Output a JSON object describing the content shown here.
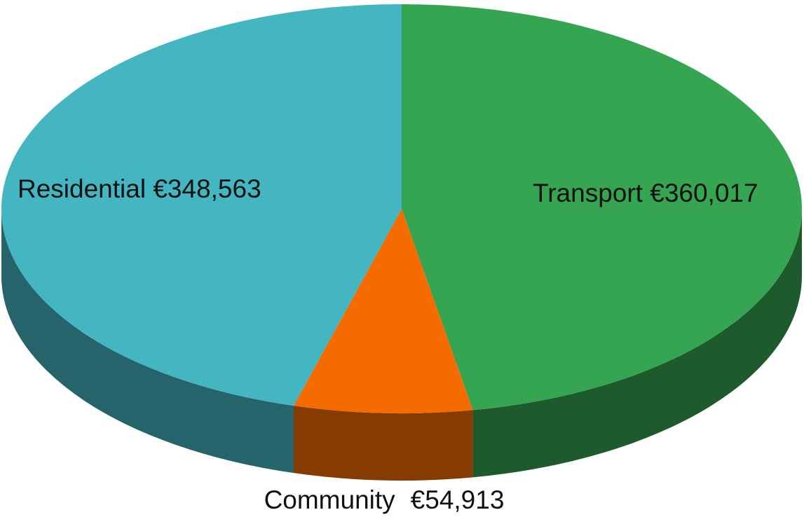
{
  "chart_data": {
    "type": "pie",
    "three_d": true,
    "categories": [
      "Transport",
      "Community",
      "Residential"
    ],
    "values": [
      360017,
      54913,
      348563
    ],
    "value_labels": [
      "€360,017",
      "€54,913",
      "€348,563"
    ],
    "colors": [
      "#35a552",
      "#f46b00",
      "#43b6c1"
    ]
  }
}
